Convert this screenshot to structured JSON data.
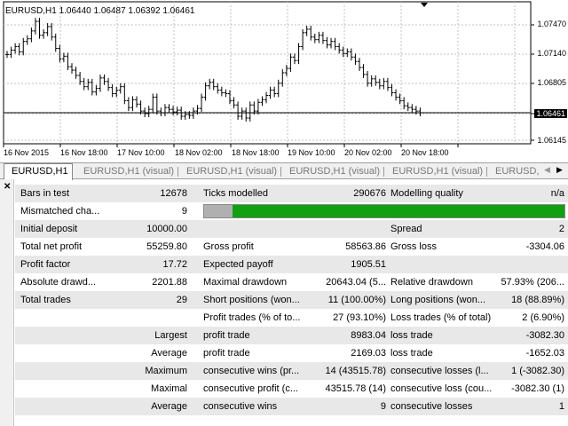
{
  "chart": {
    "info": "EURUSD,H1  1.06440 1.06487 1.06392 1.06461",
    "price_labels": [
      "1.07470",
      "1.07140",
      "1.06805",
      "1.06145"
    ],
    "current_price": "1.06461",
    "time_labels": [
      "16 Nov 2015",
      "16 Nov 18:00",
      "17 Nov 10:00",
      "18 Nov 02:00",
      "18 Nov 18:00",
      "19 Nov 10:00",
      "20 Nov 02:00",
      "20 Nov 18:00"
    ],
    "colors": {
      "bars": "#000000",
      "grid": "#c0c0c0",
      "level": "#000000"
    },
    "closes": [
      1.0713,
      1.0718,
      1.0722,
      1.0716,
      1.0728,
      1.0731,
      1.074,
      1.0751,
      1.0735,
      1.0738,
      1.0745,
      1.0733,
      1.072,
      1.0708,
      1.0711,
      1.0699,
      1.0695,
      1.0689,
      1.0682,
      1.0676,
      1.0681,
      1.067,
      1.0674,
      1.0686,
      1.0682,
      1.0675,
      1.0668,
      1.0672,
      1.0676,
      1.066,
      1.0652,
      1.0661,
      1.0656,
      1.0648,
      1.0645,
      1.065,
      1.0664,
      1.0648,
      1.0646,
      1.0652,
      1.065,
      1.0647,
      1.0649,
      1.0642,
      1.0644,
      1.0643,
      1.0648,
      1.0651,
      1.0664,
      1.0677,
      1.0681,
      1.0676,
      1.0672,
      1.0669,
      1.0668,
      1.066,
      1.0655,
      1.0642,
      1.0648,
      1.064,
      1.0655,
      1.0648,
      1.0658,
      1.0661,
      1.0666,
      1.0672,
      1.0668,
      1.068,
      1.0692,
      1.0697,
      1.071,
      1.0706,
      1.0722,
      1.0738,
      1.0742,
      1.0733,
      1.073,
      1.0735,
      1.0729,
      1.0724,
      1.0728,
      1.0722,
      1.0718,
      1.0714,
      1.0716,
      1.071,
      1.0705,
      1.0698,
      1.069,
      1.068,
      1.0685,
      1.0681,
      1.0677,
      1.0682,
      1.0675,
      1.0669,
      1.0664,
      1.066,
      1.0654,
      1.0652,
      1.065,
      1.0648,
      1.0646
    ]
  },
  "tabs": [
    {
      "label": "EURUSD,H1",
      "active": true
    },
    {
      "label": "EURUSD,H1 (visual)",
      "active": false
    },
    {
      "label": "EURUSD,H1 (visual)",
      "active": false
    },
    {
      "label": "EURUSD,H1 (visual)",
      "active": false
    },
    {
      "label": "EURUSD,H1 (visual)",
      "active": false
    },
    {
      "label": "EURUSD,H",
      "active": false
    }
  ],
  "report": {
    "bars_in_test_label": "Bars in test",
    "bars_in_test": "12678",
    "ticks_modelled_label": "Ticks modelled",
    "ticks_modelled": "290676",
    "modelling_quality_label": "Modelling quality",
    "modelling_quality": "n/a",
    "mismatched_label": "Mismatched cha...",
    "mismatched": "9",
    "quality_fraction": 0.08,
    "initial_deposit_label": "Initial deposit",
    "initial_deposit": "10000.00",
    "spread_label": "Spread",
    "spread": "2",
    "total_net_profit_label": "Total net profit",
    "total_net_profit": "55259.80",
    "gross_profit_label": "Gross profit",
    "gross_profit": "58563.86",
    "gross_loss_label": "Gross loss",
    "gross_loss": "-3304.06",
    "profit_factor_label": "Profit factor",
    "profit_factor": "17.72",
    "expected_payoff_label": "Expected payoff",
    "expected_payoff": "1905.51",
    "absolute_drawdown_label": "Absolute drawd...",
    "absolute_drawdown": "2201.88",
    "maximal_drawdown_label": "Maximal drawdown",
    "maximal_drawdown": "20643.04 (5...",
    "relative_drawdown_label": "Relative drawdown",
    "relative_drawdown": "57.93% (206...",
    "total_trades_label": "Total trades",
    "total_trades": "29",
    "short_positions_label": "Short positions (won...",
    "short_positions": "11 (100.00%)",
    "long_positions_label": "Long positions (won...",
    "long_positions": "18 (88.89%)",
    "profit_trades_label": "Profit trades (% of to...",
    "profit_trades": "27 (93.10%)",
    "loss_trades_label": "Loss trades (% of total)",
    "loss_trades": "2 (6.90%)",
    "largest_label": "Largest",
    "largest_profit_label": "profit trade",
    "largest_profit": "8983.04",
    "largest_loss_label": "loss trade",
    "largest_loss": "-3082.30",
    "average_label": "Average",
    "average_profit_label": "profit trade",
    "average_profit": "2169.03",
    "average_loss_label": "loss trade",
    "average_loss": "-1652.03",
    "maximum_label": "Maximum",
    "max_cons_wins_label": "consecutive wins (pr...",
    "max_cons_wins": "14 (43515.78)",
    "max_cons_losses_label": "consecutive losses (l...",
    "max_cons_losses": "1 (-3082.30)",
    "maximal_label": "Maximal",
    "maximal_cons_profit_label": "consecutive profit (c...",
    "maximal_cons_profit": "43515.78 (14)",
    "maximal_cons_loss_label": "consecutive loss (cou...",
    "maximal_cons_loss": "-3082.30 (1)",
    "average2_label": "Average",
    "avg_cons_wins_label": "consecutive wins",
    "avg_cons_wins": "9",
    "avg_cons_losses_label": "consecutive losses",
    "avg_cons_losses": "1"
  }
}
